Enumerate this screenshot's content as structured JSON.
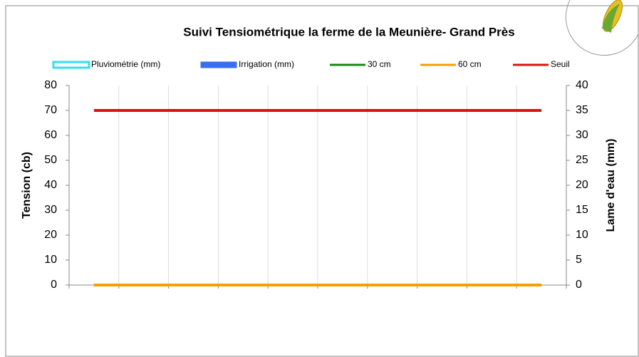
{
  "chart_data": {
    "type": "line",
    "title": "Suivi Tensiométrique la ferme de la Meunière- Grand Près",
    "ylabel": "Tension (cb)",
    "y2label": "Lame d'eau (mm)",
    "categories": [
      null,
      null,
      null,
      null,
      null,
      null,
      null,
      null,
      null,
      null
    ],
    "ylim": [
      0,
      80
    ],
    "yticks": [
      0,
      10,
      20,
      30,
      40,
      50,
      60,
      70,
      80
    ],
    "y2lim": [
      0,
      40
    ],
    "y2ticks": [
      0,
      5,
      10,
      15,
      20,
      25,
      30,
      35,
      40
    ],
    "grid": "x",
    "series": [
      {
        "name": "Pluviométrie (mm)",
        "type": "bar",
        "axis": "y2",
        "color": "#33e0f0",
        "values": [
          0,
          0,
          0,
          0,
          0,
          0,
          0,
          0,
          0,
          0
        ]
      },
      {
        "name": "Irrigation (mm)",
        "type": "bar",
        "axis": "y2",
        "color": "#3a6ef0",
        "values": [
          0,
          0,
          0,
          0,
          0,
          0,
          0,
          0,
          0,
          0
        ]
      },
      {
        "name": "30 cm",
        "type": "line",
        "color": "#138a13",
        "values": [
          0,
          0,
          0,
          0,
          0,
          0,
          0,
          0,
          0,
          0
        ]
      },
      {
        "name": "60 cm",
        "type": "line",
        "color": "#f5a000",
        "values": [
          0,
          0,
          0,
          0,
          0,
          0,
          0,
          0,
          0,
          0
        ]
      },
      {
        "name": "Seuil",
        "type": "line",
        "color": "#e01010",
        "values": [
          70,
          70,
          70,
          70,
          70,
          70,
          70,
          70,
          70,
          70
        ]
      }
    ]
  }
}
